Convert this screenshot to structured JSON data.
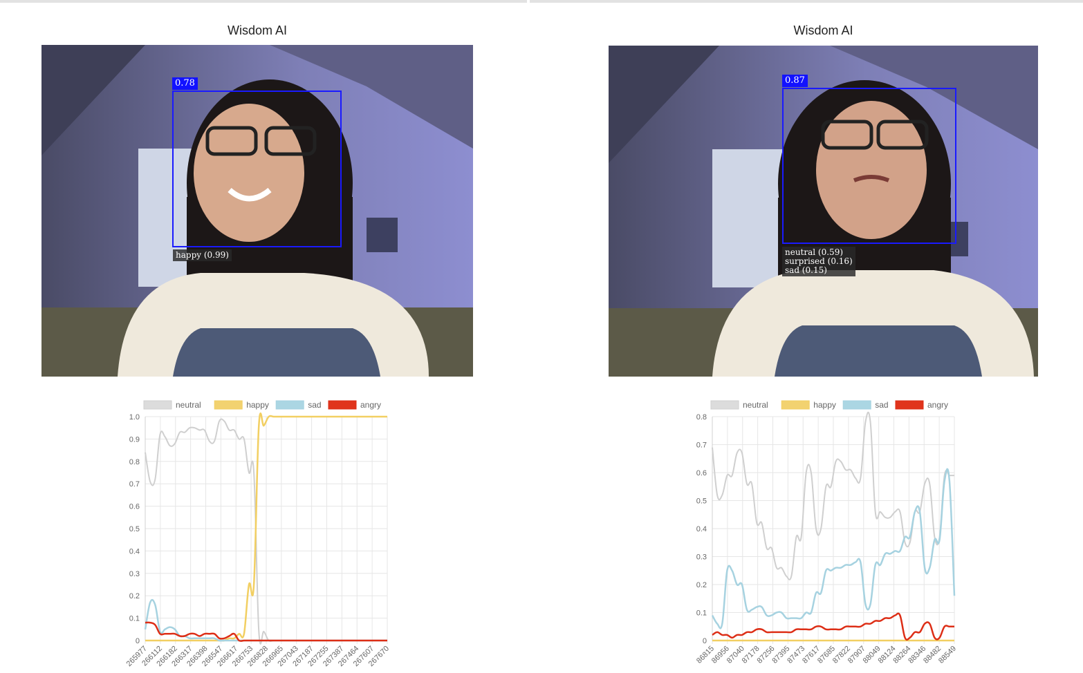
{
  "panels": [
    {
      "title": "Wisdom AI",
      "detection": {
        "score": "0.78",
        "emotions": [
          "happy (0.99)"
        ]
      }
    },
    {
      "title": "Wisdom AI",
      "detection": {
        "score": "0.87",
        "emotions": [
          "neutral (0.59)",
          "surprised (0.16)",
          "sad (0.15)"
        ]
      }
    }
  ],
  "colors": {
    "neutral": "#dcdcdc",
    "happy": "#f2d270",
    "sad": "#abd6e3",
    "angry": "#e0341c",
    "box": "#1a1aff"
  },
  "chart_data": [
    {
      "type": "line",
      "title": "",
      "legend_position": "top",
      "ylim": [
        0,
        1.0
      ],
      "y_ticks": [
        "0",
        "0.1",
        "0.2",
        "0.3",
        "0.4",
        "0.5",
        "0.6",
        "0.7",
        "0.8",
        "0.9",
        "1.0"
      ],
      "x_tick_labels": [
        "265977",
        "266112",
        "266182",
        "266317",
        "266398",
        "266547",
        "266617",
        "266753",
        "266828",
        "266965",
        "267043",
        "267187",
        "267255",
        "267387",
        "267464",
        "267607",
        "267670"
      ],
      "grid": true,
      "series": [
        {
          "name": "neutral",
          "values": [
            0.84,
            0.71,
            0.72,
            0.92,
            0.91,
            0.87,
            0.88,
            0.93,
            0.93,
            0.95,
            0.95,
            0.94,
            0.94,
            0.89,
            0.89,
            0.98,
            0.98,
            0.94,
            0.94,
            0.9,
            0.9,
            0.75,
            0.75,
            0.04,
            0.04,
            0.0,
            0.0,
            0.0,
            0.0,
            0.0,
            0.0,
            0.0,
            0.0,
            0.0,
            0.0,
            0.0,
            0.0,
            0.0,
            0.0,
            0.0,
            0.0,
            0.0,
            0.0,
            0.0,
            0.0,
            0.0,
            0.0,
            0.0,
            0.0,
            0.0
          ]
        },
        {
          "name": "happy",
          "values": [
            0.0,
            0.0,
            0.0,
            0.0,
            0.0,
            0.0,
            0.0,
            0.0,
            0.0,
            0.0,
            0.0,
            0.0,
            0.0,
            0.0,
            0.0,
            0.0,
            0.0,
            0.01,
            0.01,
            0.03,
            0.03,
            0.25,
            0.25,
            0.96,
            0.96,
            1.0,
            1.0,
            1.0,
            1.0,
            1.0,
            1.0,
            1.0,
            1.0,
            1.0,
            1.0,
            1.0,
            1.0,
            1.0,
            1.0,
            1.0,
            1.0,
            1.0,
            1.0,
            1.0,
            1.0,
            1.0,
            1.0,
            1.0,
            1.0,
            1.0
          ]
        },
        {
          "name": "sad",
          "values": [
            0.05,
            0.17,
            0.16,
            0.04,
            0.05,
            0.06,
            0.05,
            0.02,
            0.02,
            0.01,
            0.01,
            0.01,
            0.01,
            0.01,
            0.01,
            0.0,
            0.0,
            0.0,
            0.0,
            0.0,
            0.0,
            0.0,
            0.0,
            0.0,
            0.0,
            0.0,
            0.0,
            0.0,
            0.0,
            0.0,
            0.0,
            0.0,
            0.0,
            0.0,
            0.0,
            0.0,
            0.0,
            0.0,
            0.0,
            0.0,
            0.0,
            0.0,
            0.0,
            0.0,
            0.0,
            0.0,
            0.0,
            0.0,
            0.0,
            0.0
          ]
        },
        {
          "name": "angry",
          "values": [
            0.08,
            0.08,
            0.07,
            0.03,
            0.03,
            0.03,
            0.03,
            0.02,
            0.02,
            0.03,
            0.03,
            0.02,
            0.03,
            0.03,
            0.03,
            0.01,
            0.01,
            0.02,
            0.03,
            0.0,
            0.0,
            0.0,
            0.0,
            0.0,
            0.0,
            0.0,
            0.0,
            0.0,
            0.0,
            0.0,
            0.0,
            0.0,
            0.0,
            0.0,
            0.0,
            0.0,
            0.0,
            0.0,
            0.0,
            0.0,
            0.0,
            0.0,
            0.0,
            0.0,
            0.0,
            0.0,
            0.0,
            0.0,
            0.0,
            0.0
          ]
        }
      ]
    },
    {
      "type": "line",
      "title": "",
      "legend_position": "top",
      "ylim": [
        0,
        0.8
      ],
      "y_ticks": [
        "0",
        "0.1",
        "0.2",
        "0.3",
        "0.4",
        "0.5",
        "0.6",
        "0.7",
        "0.8"
      ],
      "x_tick_labels": [
        "86815",
        "86956",
        "87040",
        "87178",
        "87256",
        "87395",
        "87473",
        "87617",
        "87685",
        "87822",
        "87907",
        "88049",
        "88124",
        "88264",
        "88346",
        "88482",
        "88549"
      ],
      "grid": true,
      "series": [
        {
          "name": "neutral",
          "values": [
            0.69,
            0.52,
            0.52,
            0.59,
            0.59,
            0.67,
            0.67,
            0.56,
            0.56,
            0.42,
            0.42,
            0.33,
            0.33,
            0.26,
            0.26,
            0.23,
            0.23,
            0.37,
            0.37,
            0.6,
            0.6,
            0.4,
            0.4,
            0.55,
            0.55,
            0.64,
            0.64,
            0.61,
            0.61,
            0.58,
            0.58,
            0.78,
            0.78,
            0.46,
            0.46,
            0.44,
            0.44,
            0.46,
            0.46,
            0.35,
            0.35,
            0.46,
            0.46,
            0.56,
            0.56,
            0.37,
            0.37,
            0.59,
            0.59,
            0.59
          ]
        },
        {
          "name": "happy",
          "values": [
            0.0,
            0.0,
            0.0,
            0.0,
            0.0,
            0.0,
            0.0,
            0.0,
            0.0,
            0.0,
            0.0,
            0.0,
            0.0,
            0.0,
            0.0,
            0.0,
            0.0,
            0.0,
            0.0,
            0.0,
            0.0,
            0.0,
            0.0,
            0.0,
            0.0,
            0.0,
            0.0,
            0.0,
            0.0,
            0.0,
            0.0,
            0.0,
            0.0,
            0.0,
            0.0,
            0.0,
            0.0,
            0.0,
            0.0,
            0.0,
            0.0,
            0.0,
            0.0,
            0.0,
            0.0,
            0.0,
            0.0,
            0.0,
            0.0,
            0.0
          ]
        },
        {
          "name": "sad",
          "values": [
            0.09,
            0.06,
            0.06,
            0.25,
            0.25,
            0.2,
            0.2,
            0.11,
            0.11,
            0.12,
            0.12,
            0.09,
            0.09,
            0.1,
            0.1,
            0.08,
            0.08,
            0.08,
            0.08,
            0.1,
            0.1,
            0.17,
            0.17,
            0.25,
            0.25,
            0.26,
            0.26,
            0.27,
            0.27,
            0.28,
            0.28,
            0.13,
            0.13,
            0.27,
            0.27,
            0.31,
            0.31,
            0.32,
            0.32,
            0.37,
            0.37,
            0.46,
            0.46,
            0.26,
            0.26,
            0.36,
            0.36,
            0.57,
            0.57,
            0.16
          ]
        },
        {
          "name": "angry",
          "values": [
            0.02,
            0.03,
            0.02,
            0.02,
            0.01,
            0.02,
            0.02,
            0.03,
            0.03,
            0.04,
            0.04,
            0.03,
            0.03,
            0.03,
            0.03,
            0.03,
            0.03,
            0.04,
            0.04,
            0.04,
            0.04,
            0.05,
            0.05,
            0.04,
            0.04,
            0.04,
            0.04,
            0.05,
            0.05,
            0.05,
            0.05,
            0.06,
            0.06,
            0.07,
            0.07,
            0.08,
            0.08,
            0.09,
            0.09,
            0.01,
            0.01,
            0.03,
            0.03,
            0.06,
            0.06,
            0.01,
            0.01,
            0.05,
            0.05,
            0.05
          ]
        }
      ]
    }
  ]
}
